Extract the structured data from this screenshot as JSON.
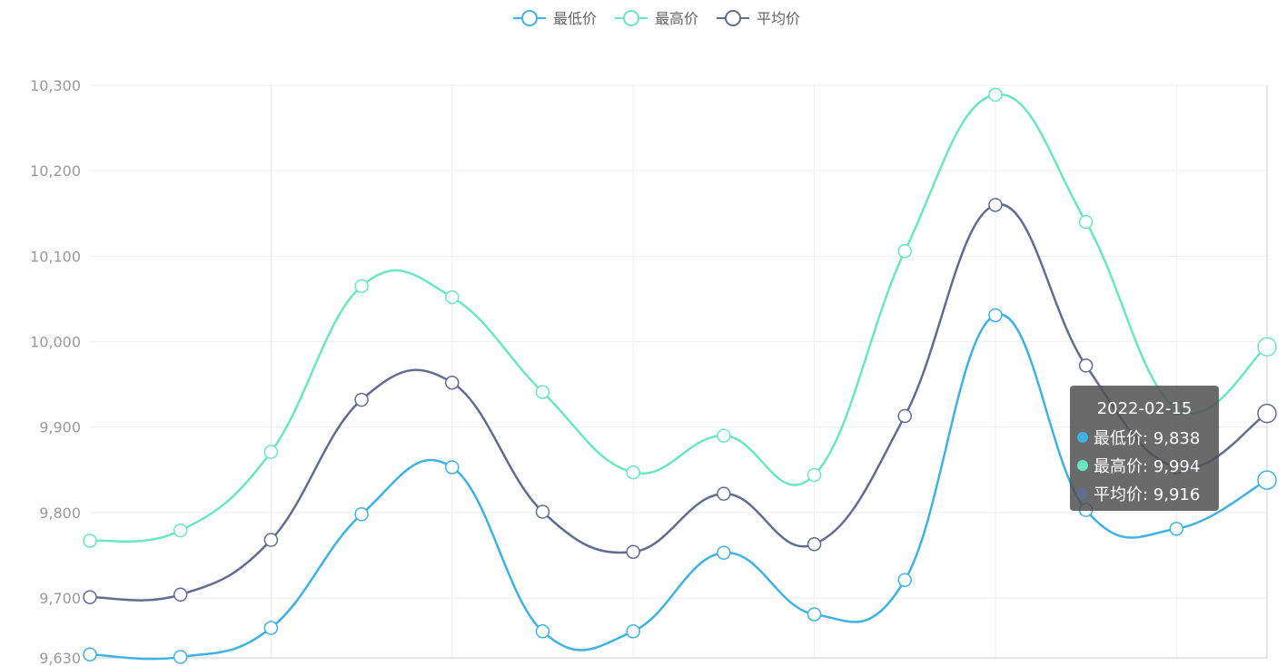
{
  "chart_data": {
    "type": "line",
    "categories": [
      null,
      null,
      null,
      null,
      null,
      null,
      null,
      null,
      null,
      null,
      null,
      null,
      null,
      "2022-02-15"
    ],
    "series": [
      {
        "name": "最低价",
        "color": "#3fb1e3",
        "values": [
          9634,
          9631,
          9665,
          9798,
          9853,
          9661,
          9661,
          9753,
          9681,
          9721,
          10031,
          9803,
          9781,
          9838
        ]
      },
      {
        "name": "最高价",
        "color": "#6be6c1",
        "values": [
          9767,
          9779,
          9871,
          10065,
          10052,
          9941,
          9847,
          9890,
          9844,
          10106,
          10289,
          10140,
          9922,
          9994
        ]
      },
      {
        "name": "平均价",
        "color": "#626c91",
        "values": [
          9701,
          9704,
          9768,
          9932,
          9952,
          9801,
          9754,
          9822,
          9763,
          9913,
          10160,
          9972,
          9853,
          9916
        ]
      }
    ],
    "ylim": [
      9630,
      10300
    ],
    "yticks": [
      {
        "value": 9630,
        "label": "9,630"
      },
      {
        "value": 9700,
        "label": "9,700"
      },
      {
        "value": 9800,
        "label": "9,800"
      },
      {
        "value": 9900,
        "label": "9,900"
      },
      {
        "value": 10000,
        "label": "10,000"
      },
      {
        "value": 10100,
        "label": "10,100"
      },
      {
        "value": 10200,
        "label": "10,200"
      },
      {
        "value": 10300,
        "label": "10,300"
      }
    ],
    "grid": true,
    "smooth": true,
    "tooltip": {
      "items": [
        "最低价: 9,838",
        "最高价: 9,994",
        "平均价: 9,916"
      ]
    }
  }
}
